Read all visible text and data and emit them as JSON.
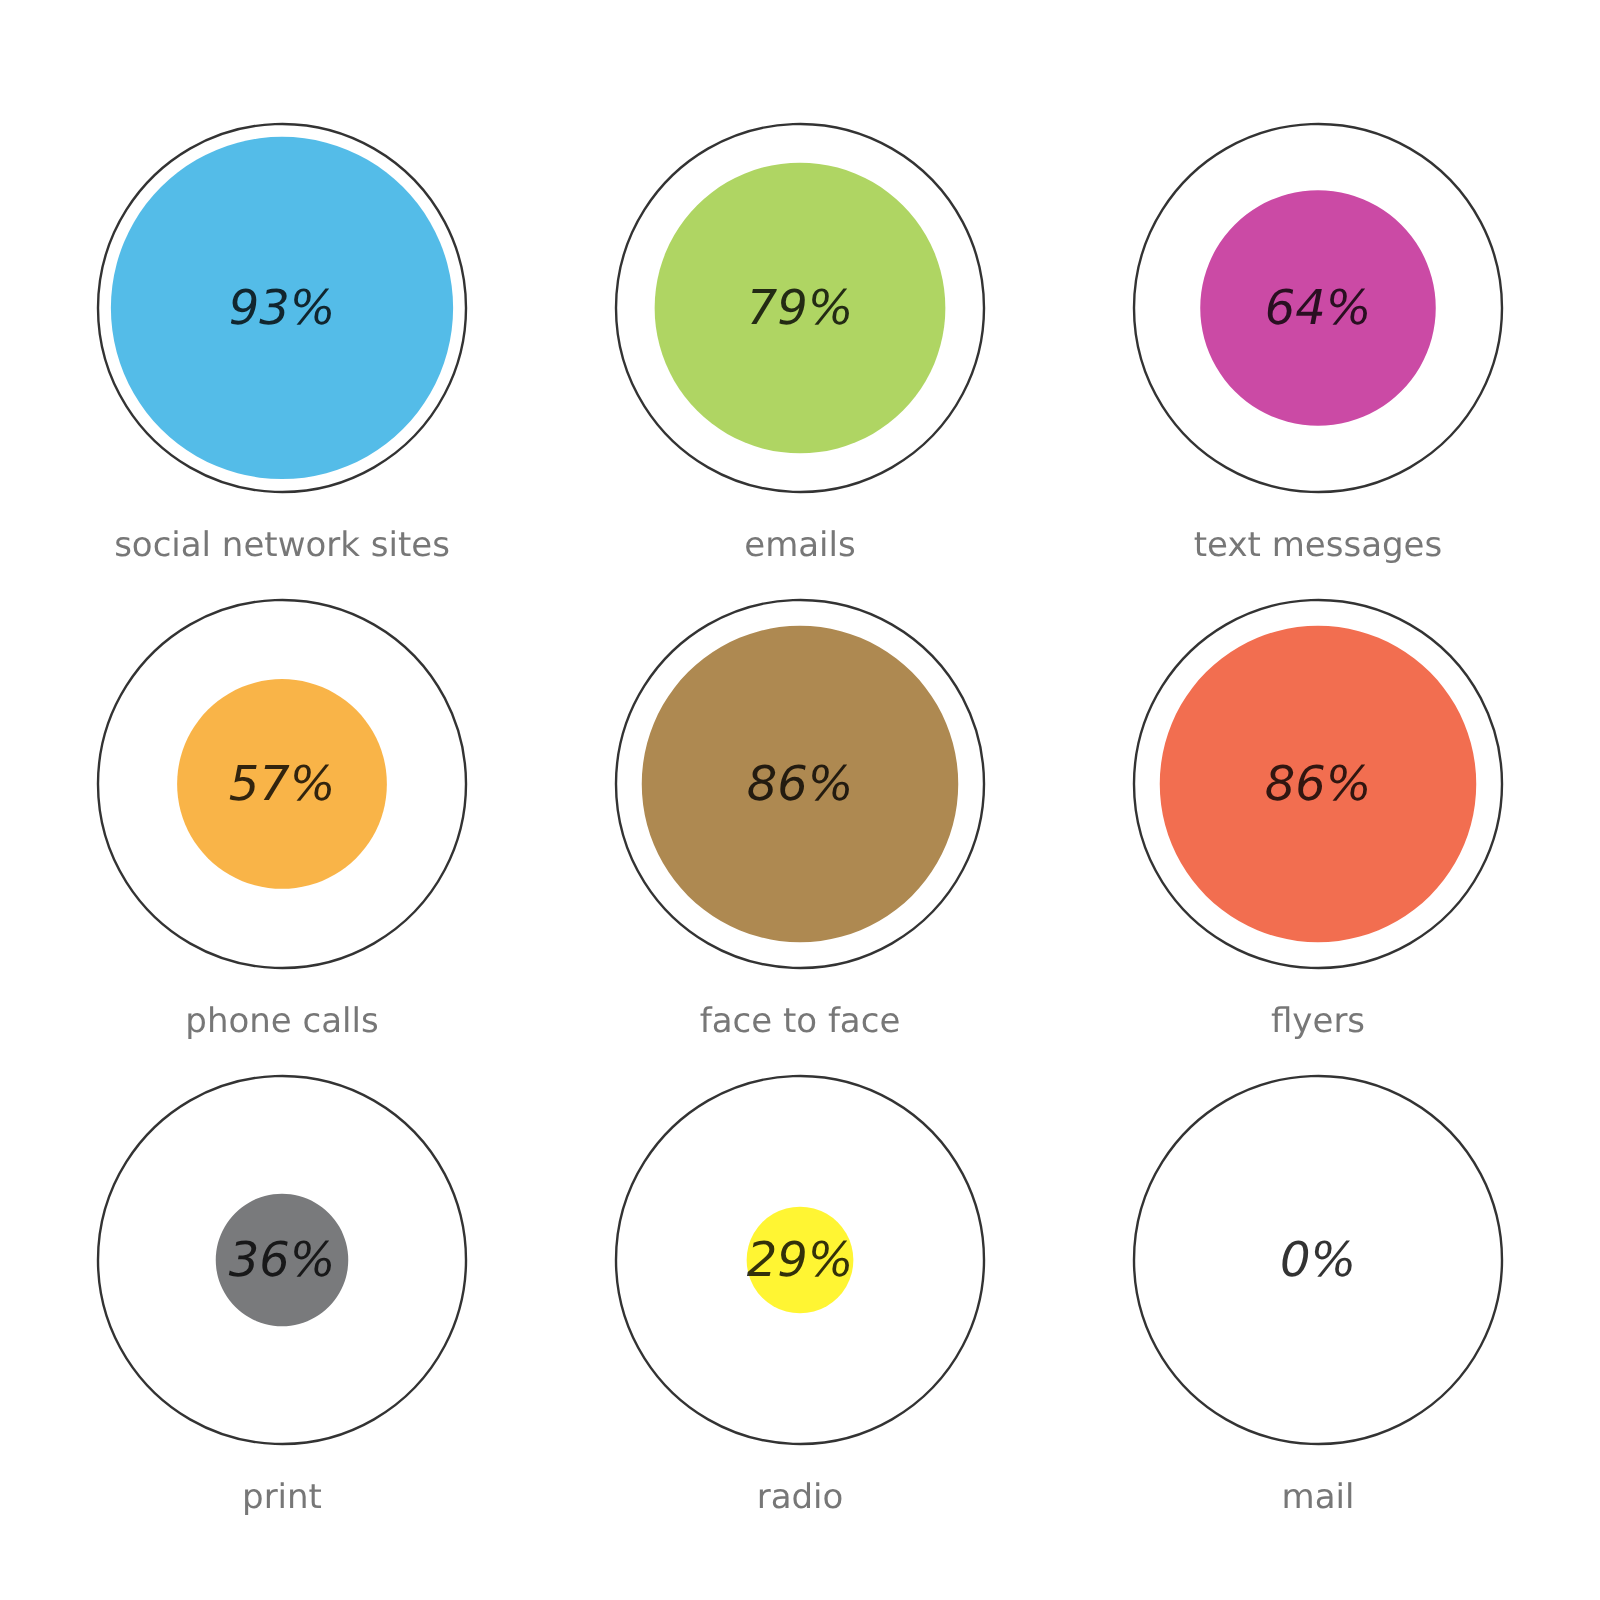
{
  "chart_data": {
    "type": "other",
    "categories": [
      "social network sites",
      "emails",
      "text messages",
      "phone calls",
      "face to face",
      "flyers",
      "print",
      "radio",
      "mail"
    ],
    "values": [
      93,
      79,
      64,
      57,
      86,
      86,
      36,
      29,
      0
    ],
    "value_labels": [
      "93%",
      "79%",
      "64%",
      "57%",
      "86%",
      "86%",
      "36%",
      "29%",
      "0%"
    ],
    "colors": [
      "#29abe2",
      "#9bca3c",
      "#be1d8e",
      "#f7a11a",
      "#9a6b25",
      "#ef4a24",
      "#58595b",
      "#fff200",
      "#ffffff"
    ]
  }
}
